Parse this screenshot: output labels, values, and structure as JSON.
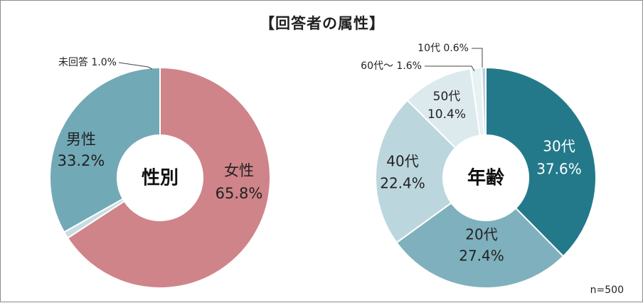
{
  "title": "【回答者の属性】",
  "note": "n=500",
  "colors": {
    "female": "#cf8489",
    "male": "#72a9b6",
    "na": "#c8dde3",
    "age30": "#23798a",
    "age20": "#7fb0bd",
    "age40": "#bcd6de",
    "age50": "#dceaee",
    "age60": "#e8f1f3",
    "age10": "#b9d3da"
  },
  "chart_data": [
    {
      "type": "pie",
      "center_label": "性別",
      "slices": [
        {
          "label": "女性",
          "value": 65.8,
          "value_text": "65.8%"
        },
        {
          "label": "未回答",
          "value": 1.0,
          "value_text": "1.0%"
        },
        {
          "label": "男性",
          "value": 33.2,
          "value_text": "33.2%"
        }
      ]
    },
    {
      "type": "pie",
      "center_label": "年齢",
      "slices": [
        {
          "label": "30代",
          "value": 37.6,
          "value_text": "37.6%"
        },
        {
          "label": "20代",
          "value": 27.4,
          "value_text": "27.4%"
        },
        {
          "label": "40代",
          "value": 22.4,
          "value_text": "22.4%"
        },
        {
          "label": "50代",
          "value": 10.4,
          "value_text": "10.4%"
        },
        {
          "label": "60代～",
          "value": 1.6,
          "value_text": "1.6%"
        },
        {
          "label": "10代",
          "value": 0.6,
          "value_text": "0.6%"
        }
      ]
    }
  ]
}
